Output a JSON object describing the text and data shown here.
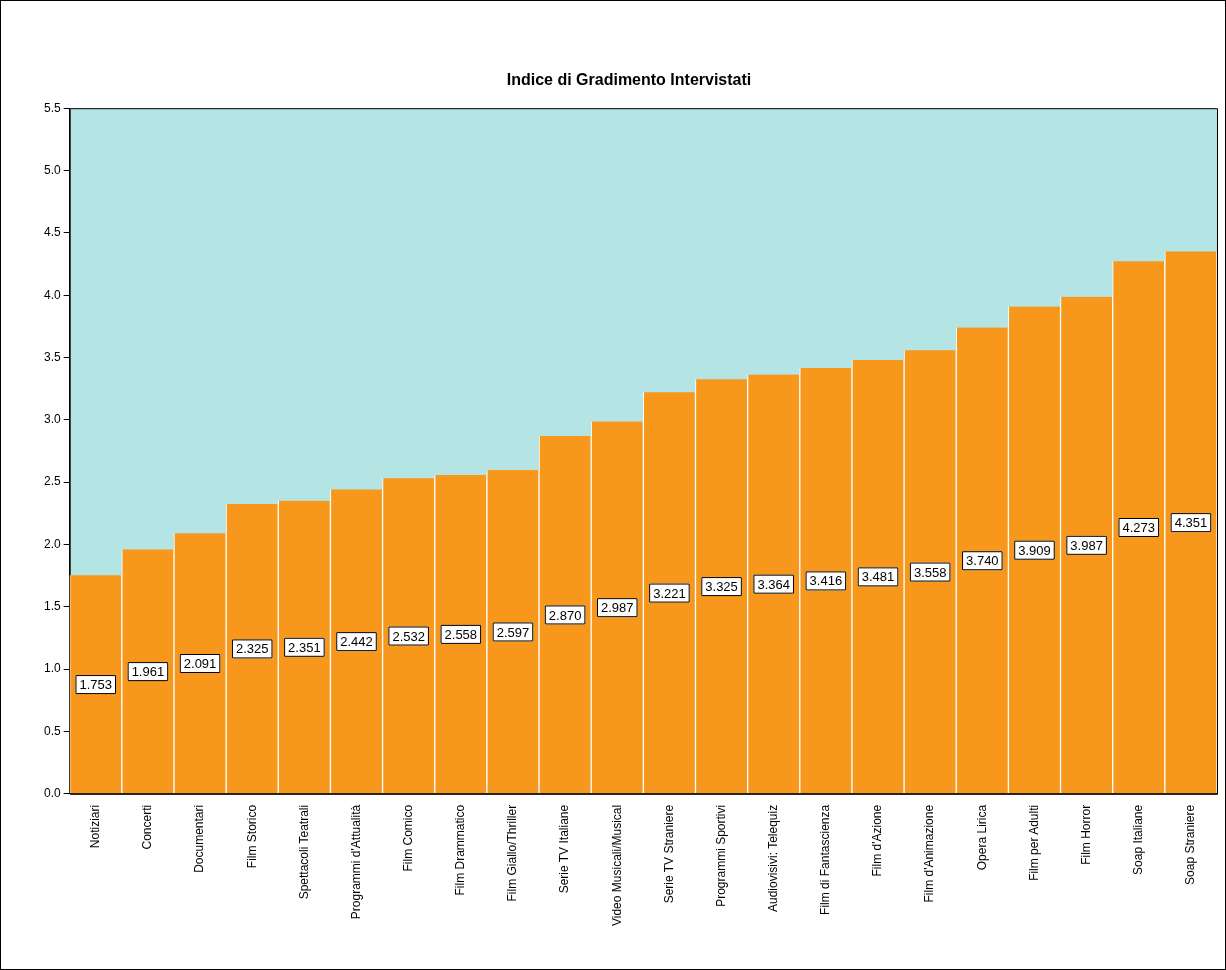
{
  "chart_data": {
    "type": "bar",
    "title": "Indice di Gradimento Intervistati",
    "categories": [
      "Notiziari",
      "Concerti",
      "Documentari",
      "Film Storico",
      "Spettacoli Teatrali",
      "Programmi d'Attualità",
      "Film Comico",
      "Film Drammatico",
      "Film Giallo/Thriller",
      "Serie TV Italiane",
      "Video Musicali/Musical",
      "Serie TV Straniere",
      "Programmi Sportivi",
      "Audiovisivi: Telequiz",
      "Film di Fantascienza",
      "Film d'Azione",
      "Film d'Animazione",
      "Opera Lirica",
      "Film per Adulti",
      "Film Horror",
      "Soap Italiane",
      "Soap Straniere"
    ],
    "values": [
      1.753,
      1.961,
      2.091,
      2.325,
      2.351,
      2.442,
      2.532,
      2.558,
      2.597,
      2.87,
      2.987,
      3.221,
      3.325,
      3.364,
      3.416,
      3.481,
      3.558,
      3.74,
      3.909,
      3.987,
      4.273,
      4.351
    ],
    "value_labels": [
      "1.753",
      "1.961",
      "2.091",
      "2.325",
      "2.351",
      "2.442",
      "2.532",
      "2.558",
      "2.597",
      "2.870",
      "2.987",
      "3.221",
      "3.325",
      "3.364",
      "3.416",
      "3.481",
      "3.558",
      "3.740",
      "3.909",
      "3.987",
      "4.273",
      "4.351"
    ],
    "color": "#f7981d",
    "ylim": [
      0,
      5.5
    ],
    "yticks": [
      {
        "value": 0,
        "label": "0.0"
      },
      {
        "value": 0.5,
        "label": "0.5"
      },
      {
        "value": 1,
        "label": "1.0"
      },
      {
        "value": 1.5,
        "label": "1.5"
      },
      {
        "value": 2,
        "label": "2.0"
      },
      {
        "value": 2.5,
        "label": "2.5"
      },
      {
        "value": 3,
        "label": "3.0"
      },
      {
        "value": 3.5,
        "label": "3.5"
      },
      {
        "value": 4,
        "label": "4.0"
      },
      {
        "value": 4.5,
        "label": "4.5"
      },
      {
        "value": 5,
        "label": "5.0"
      },
      {
        "value": 5.5,
        "label": "5.5"
      }
    ],
    "bands": [
      {
        "axis": "y",
        "from": 0,
        "to": 5.5,
        "color": "#b4e4e4"
      }
    ],
    "grid": false,
    "legend": false
  }
}
